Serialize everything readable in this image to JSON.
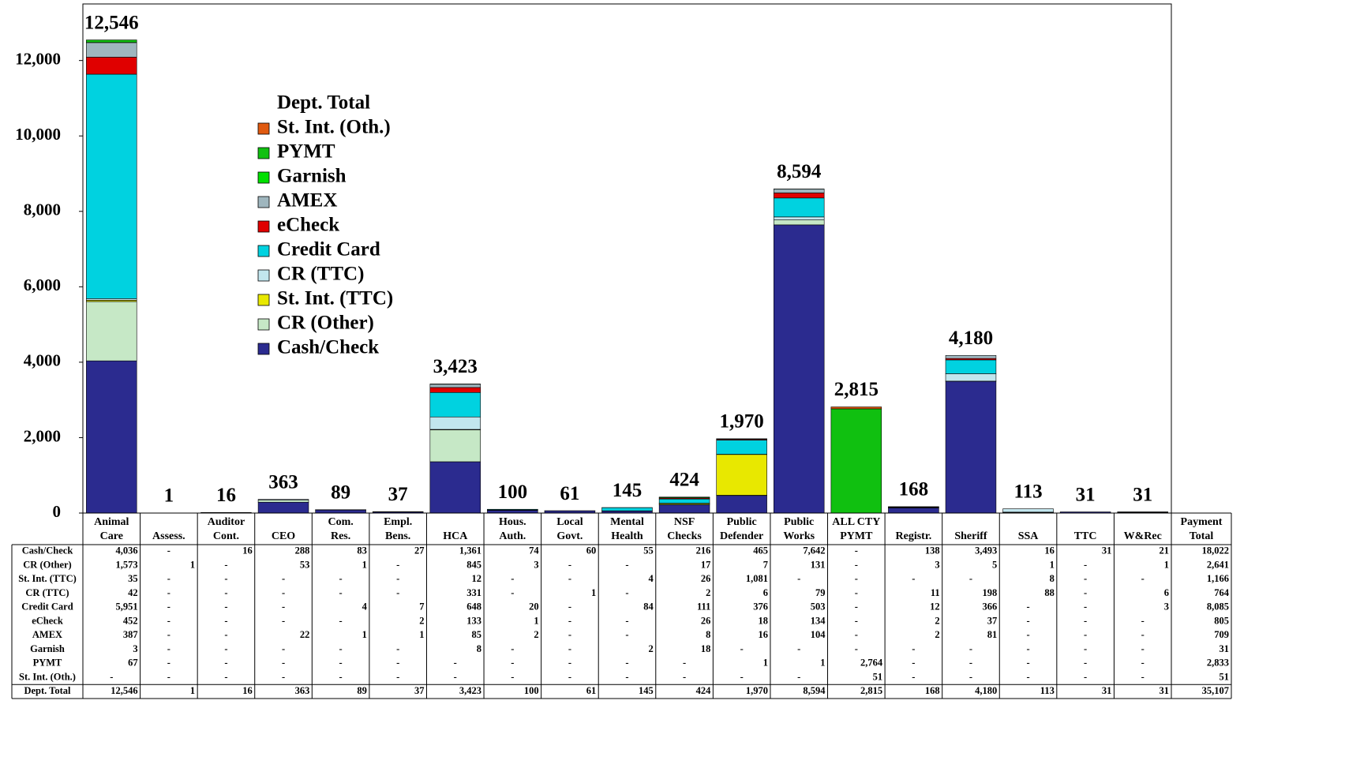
{
  "chart_data": {
    "type": "stacked_bar",
    "categories": [
      "Animal\nCare",
      "Assess.",
      "Auditor\nCont.",
      "CEO",
      "Com.\nRes.",
      "Empl.\nBens.",
      "HCA",
      "Hous.\nAuth.",
      "Local\nGovt.",
      "Mental\nHealth",
      "NSF\nChecks",
      "Public\nDefender",
      "Public\nWorks",
      "ALL CTY\nPYMT",
      "Registr.",
      "Sheriff",
      "SSA",
      "TTC",
      "W&Rec"
    ],
    "series": [
      {
        "name": "Cash/Check",
        "color": "#2b2b8f",
        "values": [
          4036,
          null,
          16,
          288,
          83,
          27,
          1361,
          74,
          60,
          55,
          216,
          465,
          7642,
          null,
          138,
          3493,
          16,
          31,
          21
        ],
        "value_labels": [
          "4,036",
          "-",
          "16",
          "288",
          "83",
          "27",
          "1,361",
          "74",
          "60",
          "55",
          "216",
          "465",
          "7,642",
          "-",
          "138",
          "3,493",
          "16",
          "31",
          "21"
        ],
        "total": "18,022"
      },
      {
        "name": "CR (Other)",
        "color": "#c6e8c6",
        "values": [
          1573,
          1,
          null,
          53,
          1,
          null,
          845,
          3,
          null,
          null,
          17,
          7,
          131,
          null,
          3,
          5,
          1,
          null,
          1
        ],
        "value_labels": [
          "1,573",
          "1",
          "-",
          "53",
          "1",
          "-",
          "845",
          "3",
          "-",
          "-",
          "17",
          "7",
          "131",
          "-",
          "3",
          "5",
          "1",
          "-",
          "1"
        ],
        "total": "2,641"
      },
      {
        "name": "St. Int. (TTC)",
        "color": "#e8e800",
        "values": [
          35,
          null,
          null,
          null,
          null,
          null,
          12,
          null,
          null,
          4,
          26,
          1081,
          null,
          null,
          null,
          null,
          8,
          null,
          null
        ],
        "value_labels": [
          "35",
          "-",
          "-",
          "-",
          "-",
          "-",
          "12",
          "-",
          "-",
          "4",
          "26",
          "1,081",
          "-",
          "-",
          "-",
          "-",
          "8",
          "-",
          "-"
        ],
        "total": "1,166"
      },
      {
        "name": "CR (TTC)",
        "color": "#c2e6ee",
        "values": [
          42,
          null,
          null,
          null,
          null,
          null,
          331,
          null,
          1,
          null,
          2,
          6,
          79,
          null,
          11,
          198,
          88,
          null,
          6
        ],
        "value_labels": [
          "42",
          "-",
          "-",
          "-",
          "-",
          "-",
          "331",
          "-",
          "1",
          "-",
          "2",
          "6",
          "79",
          "-",
          "11",
          "198",
          "88",
          "-",
          "6"
        ],
        "total": "764"
      },
      {
        "name": "Credit Card",
        "color": "#00d2e0",
        "values": [
          5951,
          null,
          null,
          null,
          4,
          7,
          648,
          20,
          null,
          84,
          111,
          376,
          503,
          null,
          12,
          366,
          null,
          null,
          3
        ],
        "value_labels": [
          "5,951",
          "-",
          "-",
          "-",
          "4",
          "7",
          "648",
          "20",
          "-",
          "84",
          "111",
          "376",
          "503",
          "-",
          "12",
          "366",
          "-",
          "-",
          "3"
        ],
        "total": "8,085"
      },
      {
        "name": "eCheck",
        "color": "#e00000",
        "values": [
          452,
          null,
          null,
          null,
          null,
          2,
          133,
          1,
          null,
          null,
          26,
          18,
          134,
          null,
          2,
          37,
          null,
          null,
          null
        ],
        "value_labels": [
          "452",
          "-",
          "-",
          "-",
          "-",
          "2",
          "133",
          "1",
          "-",
          "-",
          "26",
          "18",
          "134",
          "-",
          "2",
          "37",
          "-",
          "-",
          "-"
        ],
        "total": "805"
      },
      {
        "name": "AMEX",
        "color": "#9fb6be",
        "values": [
          387,
          null,
          null,
          22,
          1,
          1,
          85,
          2,
          null,
          null,
          8,
          16,
          104,
          null,
          2,
          81,
          null,
          null,
          null
        ],
        "value_labels": [
          "387",
          "-",
          "-",
          "22",
          "1",
          "1",
          "85",
          "2",
          "-",
          "-",
          "8",
          "16",
          "104",
          "-",
          "2",
          "81",
          "-",
          "-",
          "-"
        ],
        "total": "709"
      },
      {
        "name": "Garnish",
        "color": "#00e000",
        "values": [
          3,
          null,
          null,
          null,
          null,
          null,
          8,
          null,
          null,
          2,
          18,
          null,
          null,
          null,
          null,
          null,
          null,
          null,
          null
        ],
        "value_labels": [
          "3",
          "-",
          "-",
          "-",
          "-",
          "-",
          "8",
          "-",
          "-",
          "2",
          "18",
          "-",
          "-",
          "-",
          "-",
          "-",
          "-",
          "-",
          "-"
        ],
        "total": "31"
      },
      {
        "name": "PYMT",
        "color": "#10c010",
        "values": [
          67,
          null,
          null,
          null,
          null,
          null,
          null,
          null,
          null,
          null,
          null,
          1,
          1,
          2764,
          null,
          null,
          null,
          null,
          null
        ],
        "value_labels": [
          "67",
          "-",
          "-",
          "-",
          "-",
          "-",
          "-",
          "-",
          "-",
          "-",
          "-",
          "1",
          "1",
          "2,764",
          "-",
          "-",
          "-",
          "-",
          "-"
        ],
        "total": "2,833"
      },
      {
        "name": "St. Int. (Oth.)",
        "color": "#e05a10",
        "values": [
          null,
          null,
          null,
          null,
          null,
          null,
          null,
          null,
          null,
          null,
          null,
          null,
          null,
          51,
          null,
          null,
          null,
          null,
          null
        ],
        "value_labels": [
          "-",
          "-",
          "-",
          "-",
          "-",
          "-",
          "-",
          "-",
          "-",
          "-",
          "-",
          "-",
          "-",
          "51",
          "-",
          "-",
          "-",
          "-",
          "-"
        ],
        "total": "51"
      }
    ],
    "totals_name": "Dept. Total",
    "totals": [
      12546,
      1,
      16,
      363,
      89,
      37,
      3423,
      100,
      61,
      145,
      424,
      1970,
      8594,
      2815,
      168,
      4180,
      113,
      31,
      31
    ],
    "totals_labels": [
      "12,546",
      "1",
      "16",
      "363",
      "89",
      "37",
      "3,423",
      "100",
      "61",
      "145",
      "424",
      "1,970",
      "8,594",
      "2,815",
      "168",
      "4,180",
      "113",
      "31",
      "31"
    ],
    "total_header": "Payment\nTotal",
    "grand_total": "35,107",
    "ylim": [
      0,
      13500
    ],
    "yticks": [
      0,
      {
        "value": 2000,
        "label": "2,000"
      },
      {
        "value": 4000,
        "label": "4,000"
      },
      {
        "value": 6000,
        "label": "6,000"
      },
      {
        "value": 8000,
        "label": "8,000"
      },
      {
        "value": 10000,
        "label": "10,000"
      },
      {
        "value": 12000,
        "label": "12,000"
      }
    ],
    "grid": false,
    "legend": "upper-left"
  }
}
